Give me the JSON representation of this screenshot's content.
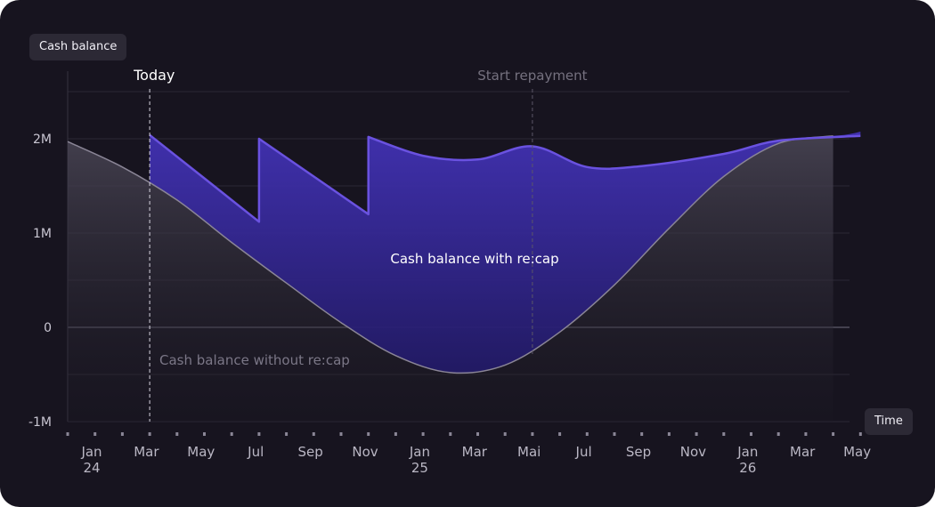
{
  "chart_data": {
    "type": "area",
    "ylabel": "Cash balance",
    "xlabel": "Time",
    "ylim": [
      -1000000,
      2500000
    ],
    "yticks": [
      {
        "value": 2000000,
        "label": "2M"
      },
      {
        "value": 1000000,
        "label": "1M"
      },
      {
        "value": 0,
        "label": "0"
      },
      {
        "value": -1000000,
        "label": "-1M"
      }
    ],
    "x_ticks": [
      {
        "label": "Jan",
        "sub": "24"
      },
      {
        "label": "Mar",
        "sub": ""
      },
      {
        "label": "May",
        "sub": ""
      },
      {
        "label": "Jul",
        "sub": ""
      },
      {
        "label": "Sep",
        "sub": ""
      },
      {
        "label": "Nov",
        "sub": ""
      },
      {
        "label": "Jan",
        "sub": "25"
      },
      {
        "label": "Mar",
        "sub": ""
      },
      {
        "label": "Mai",
        "sub": ""
      },
      {
        "label": "Jul",
        "sub": ""
      },
      {
        "label": "Sep",
        "sub": ""
      },
      {
        "label": "Nov",
        "sub": ""
      },
      {
        "label": "Jan",
        "sub": "26"
      },
      {
        "label": "Mar",
        "sub": ""
      },
      {
        "label": "May",
        "sub": ""
      }
    ],
    "series": [
      {
        "name": "Cash balance without re:cap",
        "color": "#8a8596",
        "points": [
          [
            0,
            1970000
          ],
          [
            1,
            1700000
          ],
          [
            2,
            1350000
          ],
          [
            3,
            900000
          ],
          [
            4,
            470000
          ],
          [
            5,
            50000
          ],
          [
            6,
            -300000
          ],
          [
            7,
            -480000
          ],
          [
            8,
            -400000
          ],
          [
            9,
            -50000
          ],
          [
            10,
            450000
          ],
          [
            11,
            1050000
          ],
          [
            12,
            1600000
          ],
          [
            13,
            1950000
          ],
          [
            14,
            2030000
          ]
        ]
      },
      {
        "name": "Cash balance with re:cap",
        "color": "#6a52e0",
        "points": [
          [
            1.5,
            2040000
          ],
          [
            3.5,
            1120000
          ],
          [
            3.5,
            2000000
          ],
          [
            5.5,
            1200000
          ],
          [
            5.5,
            2020000
          ],
          [
            6.5,
            1820000
          ],
          [
            7.5,
            1780000
          ],
          [
            8.5,
            1920000
          ],
          [
            9.5,
            1700000
          ],
          [
            10.5,
            1710000
          ],
          [
            12,
            1840000
          ],
          [
            13,
            1980000
          ],
          [
            14.5,
            2030000
          ]
        ]
      }
    ],
    "annotations": {
      "today": {
        "label": "Today",
        "x": 1.5
      },
      "start_repayment": {
        "label": "Start repayment",
        "x": 8.5
      }
    }
  }
}
